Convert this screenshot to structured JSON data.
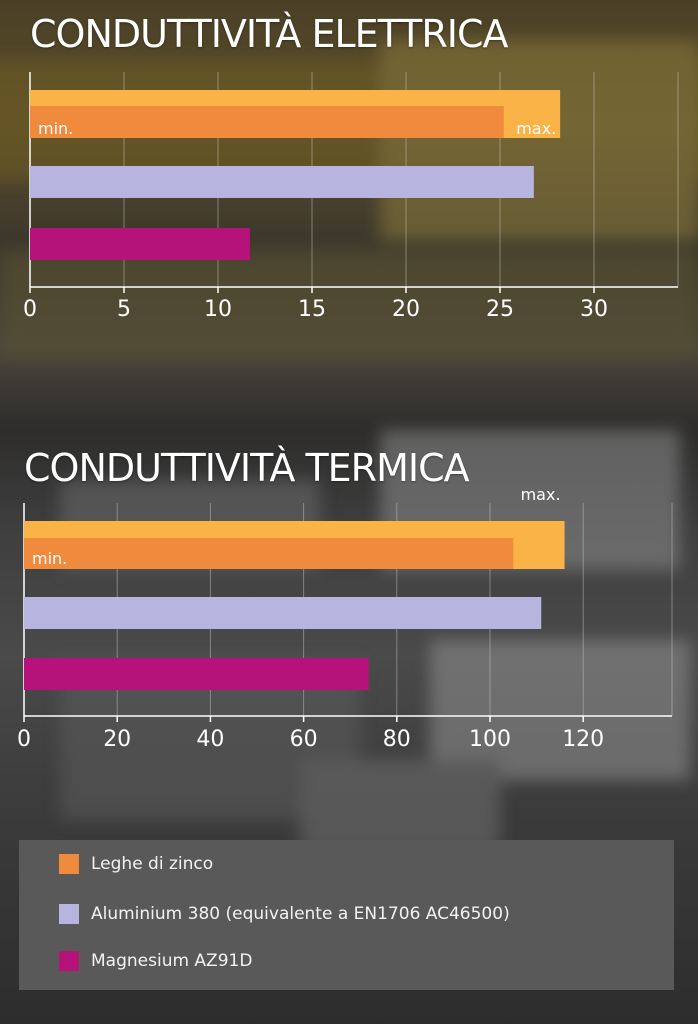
{
  "chart_data": [
    {
      "type": "bar",
      "title": "CONDUTTIVITÀ ELETTRICA",
      "orientation": "horizontal",
      "xlim": [
        0,
        34
      ],
      "ticks": [
        0,
        5,
        10,
        15,
        20,
        25,
        30
      ],
      "grid": true,
      "series": [
        {
          "name": "Leghe di zinco",
          "min": 25.2,
          "max": 28.2,
          "min_label": "min.",
          "max_label": "max."
        },
        {
          "name": "Aluminium 380 (equivalente a EN1706 AC46500)",
          "value": 26.8
        },
        {
          "name": "Magnesium AZ91D",
          "value": 11.7
        }
      ]
    },
    {
      "type": "bar",
      "title": "CONDUTTIVITÀ TERMICA",
      "orientation": "horizontal",
      "xlim": [
        0,
        140
      ],
      "ticks": [
        0,
        20,
        40,
        60,
        80,
        100,
        120
      ],
      "grid": true,
      "series": [
        {
          "name": "Leghe di zinco",
          "min": 105,
          "max": 116,
          "min_label": "min.",
          "max_label": "max."
        },
        {
          "name": "Aluminium 380 (equivalente a EN1706 AC46500)",
          "value": 111
        },
        {
          "name": "Magnesium AZ91D",
          "value": 74
        }
      ]
    }
  ],
  "legend": {
    "placement": "bottom",
    "items": [
      {
        "label": "Leghe di zinco",
        "color": "#f08a3c"
      },
      {
        "label": "Aluminium 380 (equivalente a EN1706 AC46500)",
        "color": "#b8b4e0"
      },
      {
        "label": "Magnesium AZ91D",
        "color": "#b5127a"
      }
    ]
  },
  "colors": {
    "zinc_max": "#f9b347",
    "zinc_min": "#f08a3c",
    "aluminium": "#b8b4e0",
    "magnesium": "#b5127a",
    "axis": "#ffffff",
    "grid": "#cfcfcf"
  }
}
